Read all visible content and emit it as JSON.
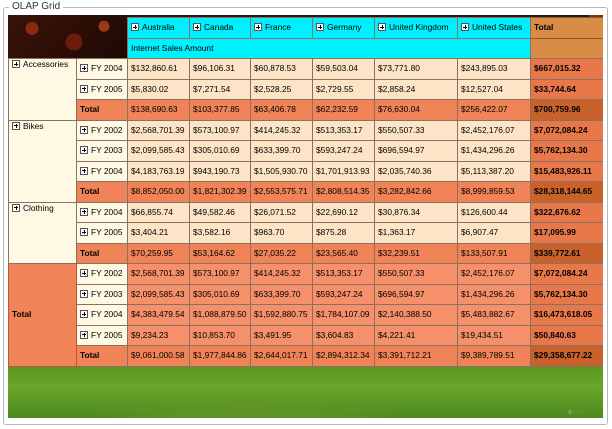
{
  "panel": {
    "title": "OLAP Grid"
  },
  "columns": [
    "Australia",
    "Canada",
    "France",
    "Germany",
    "United Kingdom",
    "United States"
  ],
  "total_label": "Total",
  "measure": "Internet Sales Amount",
  "groups": [
    {
      "name": "Accessories",
      "rows": [
        {
          "year": "FY 2004",
          "values": [
            "$132,860.61",
            "$96,106.31",
            "$60,878.53",
            "$59,503.04",
            "$73,771.80",
            "$243,895.03"
          ],
          "total": "$667,015.32"
        },
        {
          "year": "FY 2005",
          "values": [
            "$5,830.02",
            "$7,271.54",
            "$2,528.25",
            "$2,729.55",
            "$2,858.24",
            "$12,527.04"
          ],
          "total": "$33,744.64"
        }
      ],
      "subtotal": {
        "label": "Total",
        "values": [
          "$138,690.63",
          "$103,377.85",
          "$63,406.78",
          "$62,232.59",
          "$76,630.04",
          "$256,422.07"
        ],
        "total": "$700,759.96"
      }
    },
    {
      "name": "Bikes",
      "rows": [
        {
          "year": "FY 2002",
          "values": [
            "$2,568,701.39",
            "$573,100.97",
            "$414,245.32",
            "$513,353.17",
            "$550,507.33",
            "$2,452,176.07"
          ],
          "total": "$7,072,084.24"
        },
        {
          "year": "FY 2003",
          "values": [
            "$2,099,585.43",
            "$305,010.69",
            "$633,399.70",
            "$593,247.24",
            "$696,594.97",
            "$1,434,296.26"
          ],
          "total": "$5,762,134.30"
        },
        {
          "year": "FY 2004",
          "values": [
            "$4,183,763.19",
            "$943,190.73",
            "$1,505,930.70",
            "$1,701,913.93",
            "$2,035,740.36",
            "$5,113,387.20"
          ],
          "total": "$15,483,926.11"
        }
      ],
      "subtotal": {
        "label": "Total",
        "values": [
          "$8,852,050.00",
          "$1,821,302.39",
          "$2,553,575.71",
          "$2,808,514.35",
          "$3,282,842.66",
          "$8,999,859.53"
        ],
        "total": "$28,318,144.65"
      }
    },
    {
      "name": "Clothing",
      "rows": [
        {
          "year": "FY 2004",
          "values": [
            "$66,855.74",
            "$49,582.46",
            "$26,071.52",
            "$22,690.12",
            "$30,876.34",
            "$126,600.44"
          ],
          "total": "$322,676.62"
        },
        {
          "year": "FY 2005",
          "values": [
            "$3,404.21",
            "$3,582.16",
            "$963.70",
            "$875.28",
            "$1,363.17",
            "$6,907.47"
          ],
          "total": "$17,095.99"
        }
      ],
      "subtotal": {
        "label": "Total",
        "values": [
          "$70,259.95",
          "$53,164.62",
          "$27,035.22",
          "$23,565.40",
          "$32,239.51",
          "$133,507.91"
        ],
        "total": "$339,772.61"
      }
    }
  ],
  "grand": {
    "name": "Total",
    "rows": [
      {
        "year": "FY 2002",
        "values": [
          "$2,568,701.39",
          "$573,100.97",
          "$414,245.32",
          "$513,353.17",
          "$550,507.33",
          "$2,452,176.07"
        ],
        "total": "$7,072,084.24"
      },
      {
        "year": "FY 2003",
        "values": [
          "$2,099,585.43",
          "$305,010.69",
          "$633,399.70",
          "$593,247.24",
          "$696,594.97",
          "$1,434,296.26"
        ],
        "total": "$5,762,134.30"
      },
      {
        "year": "FY 2004",
        "values": [
          "$4,383,479.54",
          "$1,088,879.50",
          "$1,592,880.75",
          "$1,784,107.09",
          "$2,140,388.50",
          "$5,483,882.67"
        ],
        "total": "$16,473,618.05"
      },
      {
        "year": "FY 2005",
        "values": [
          "$9,234.23",
          "$10,853.70",
          "$3,491.95",
          "$3,604.83",
          "$4,221.41",
          "$19,434.51"
        ],
        "total": "$50,840.63"
      }
    ],
    "subtotal": {
      "label": "Total",
      "values": [
        "$9,061,000.58",
        "$1,977,844.86",
        "$2,644,017.71",
        "$2,894,312.34",
        "$3,391,712.21",
        "$9,389,789.51"
      ],
      "total": "$29,358,677.22"
    }
  }
}
